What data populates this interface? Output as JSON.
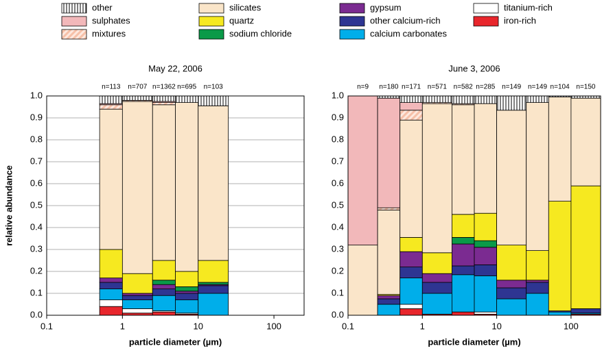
{
  "legend": [
    {
      "name": "other",
      "color": "#ffffff",
      "pattern": "vertical-lines"
    },
    {
      "name": "sulphates",
      "color": "#f2b8ba"
    },
    {
      "name": "mixtures",
      "color": "#f6c8b8",
      "pattern": "diagonal-lines"
    },
    {
      "name": "silicates",
      "color": "#fae5c9"
    },
    {
      "name": "quartz",
      "color": "#f6e920"
    },
    {
      "name": "sodium chloride",
      "color": "#0a9a48"
    },
    {
      "name": "gypsum",
      "color": "#7b2b91"
    },
    {
      "name": "other calcium-rich",
      "color": "#2e3592"
    },
    {
      "name": "calcium carbonates",
      "color": "#00aeea"
    },
    {
      "name": "titanium-rich",
      "color": "#ffffff"
    },
    {
      "name": "iron-rich",
      "color": "#e8262c"
    }
  ],
  "chart_data": [
    {
      "type": "stacked-histogram",
      "title": "May 22, 2006",
      "xlabel": "particle diameter (µm)",
      "ylabel": "relative abundance",
      "log_x": true,
      "grid": true,
      "bins": [
        0.5,
        1,
        2.5,
        5,
        10,
        25
      ],
      "bin_labels": [
        "n=113",
        "n=707",
        "n=1362",
        "n=695",
        "n=103"
      ],
      "xlim": [
        0.1,
        250
      ],
      "xticks": [
        0.1,
        1,
        10,
        100
      ],
      "ylim": [
        0,
        1
      ],
      "yticks": [
        {
          "value": 0,
          "label": "0.0"
        },
        0.1,
        0.2,
        0.3,
        0.4,
        0.5,
        0.6,
        0.7,
        0.8,
        0.9,
        {
          "value": 1,
          "label": "1.0"
        }
      ],
      "series": [
        {
          "values": [
            0.035,
            0.02,
            0.025,
            0.03,
            0.045
          ]
        },
        {
          "values": [
            0.005,
            0,
            0.005,
            0,
            0
          ]
        },
        {
          "values": [
            0.02,
            0.005,
            0.01,
            0,
            0
          ]
        },
        {
          "values": [
            0.64,
            0.785,
            0.71,
            0.77,
            0.705
          ]
        },
        {
          "values": [
            0.13,
            0.09,
            0.09,
            0.07,
            0.1
          ]
        },
        {
          "values": [
            0,
            0,
            0.02,
            0.02,
            0.01
          ]
        },
        {
          "values": [
            0.02,
            0.01,
            0.02,
            0.01,
            0.005
          ]
        },
        {
          "values": [
            0.03,
            0.02,
            0.03,
            0.03,
            0.035
          ]
        },
        {
          "values": [
            0.05,
            0.04,
            0.07,
            0.06,
            0.1
          ]
        },
        {
          "values": [
            0.03,
            0.02,
            0.005,
            0.005,
            0
          ]
        },
        {
          "values": [
            0.04,
            0.01,
            0.015,
            0.005,
            0
          ]
        }
      ]
    },
    {
      "type": "stacked-histogram",
      "title": "June 3, 2006",
      "xlabel": "particle diameter (µm)",
      "log_x": true,
      "grid": true,
      "bins": [
        0.1,
        0.25,
        0.5,
        1,
        2.5,
        5,
        10,
        25,
        50,
        100,
        250
      ],
      "bin_labels": [
        "n=9",
        "n=180",
        "n=171",
        "n=571",
        "n=582",
        "n=285",
        "n=149",
        "n=149",
        "n=104",
        "n=150"
      ],
      "xlim": [
        0.1,
        250
      ],
      "xticks": [
        0.1,
        1,
        10,
        100
      ],
      "ylim": [
        0,
        1
      ],
      "yticks": [
        {
          "value": 0,
          "label": "0.0"
        },
        0.1,
        0.2,
        0.3,
        0.4,
        0.5,
        0.6,
        0.7,
        0.8,
        0.9,
        {
          "value": 1,
          "label": "1.0"
        }
      ],
      "series": [
        {
          "values": [
            0,
            0.01,
            0.03,
            0.03,
            0.035,
            0.035,
            0.065,
            0.03,
            0.005,
            0.01
          ]
        },
        {
          "values": [
            0.68,
            0.5,
            0.035,
            0,
            0,
            0,
            0,
            0,
            0,
            0
          ]
        },
        {
          "values": [
            0,
            0.01,
            0.045,
            0.005,
            0.005,
            0,
            0,
            0,
            0,
            0
          ]
        },
        {
          "values": [
            0.32,
            0.385,
            0.535,
            0.68,
            0.5,
            0.5,
            0.615,
            0.675,
            0.475,
            0.4
          ]
        },
        {
          "values": [
            0,
            0.005,
            0.065,
            0.095,
            0.105,
            0.125,
            0.16,
            0.135,
            0.5,
            0.56
          ]
        },
        {
          "values": [
            0,
            0,
            0,
            0,
            0.03,
            0.03,
            0,
            0,
            0,
            0
          ]
        },
        {
          "values": [
            0,
            0.015,
            0.07,
            0.04,
            0.1,
            0.08,
            0.035,
            0.01,
            0,
            0
          ]
        },
        {
          "values": [
            0,
            0.025,
            0.05,
            0.05,
            0.04,
            0.05,
            0.05,
            0.05,
            0.005,
            0.02
          ]
        },
        {
          "values": [
            0,
            0.05,
            0.12,
            0.095,
            0.17,
            0.165,
            0.075,
            0.1,
            0.015,
            0.005
          ]
        },
        {
          "values": [
            0,
            0,
            0.02,
            0,
            0,
            0.01,
            0,
            0,
            0,
            0
          ]
        },
        {
          "values": [
            0,
            0,
            0.03,
            0.005,
            0.015,
            0.005,
            0,
            0,
            0,
            0.005
          ]
        }
      ]
    }
  ]
}
